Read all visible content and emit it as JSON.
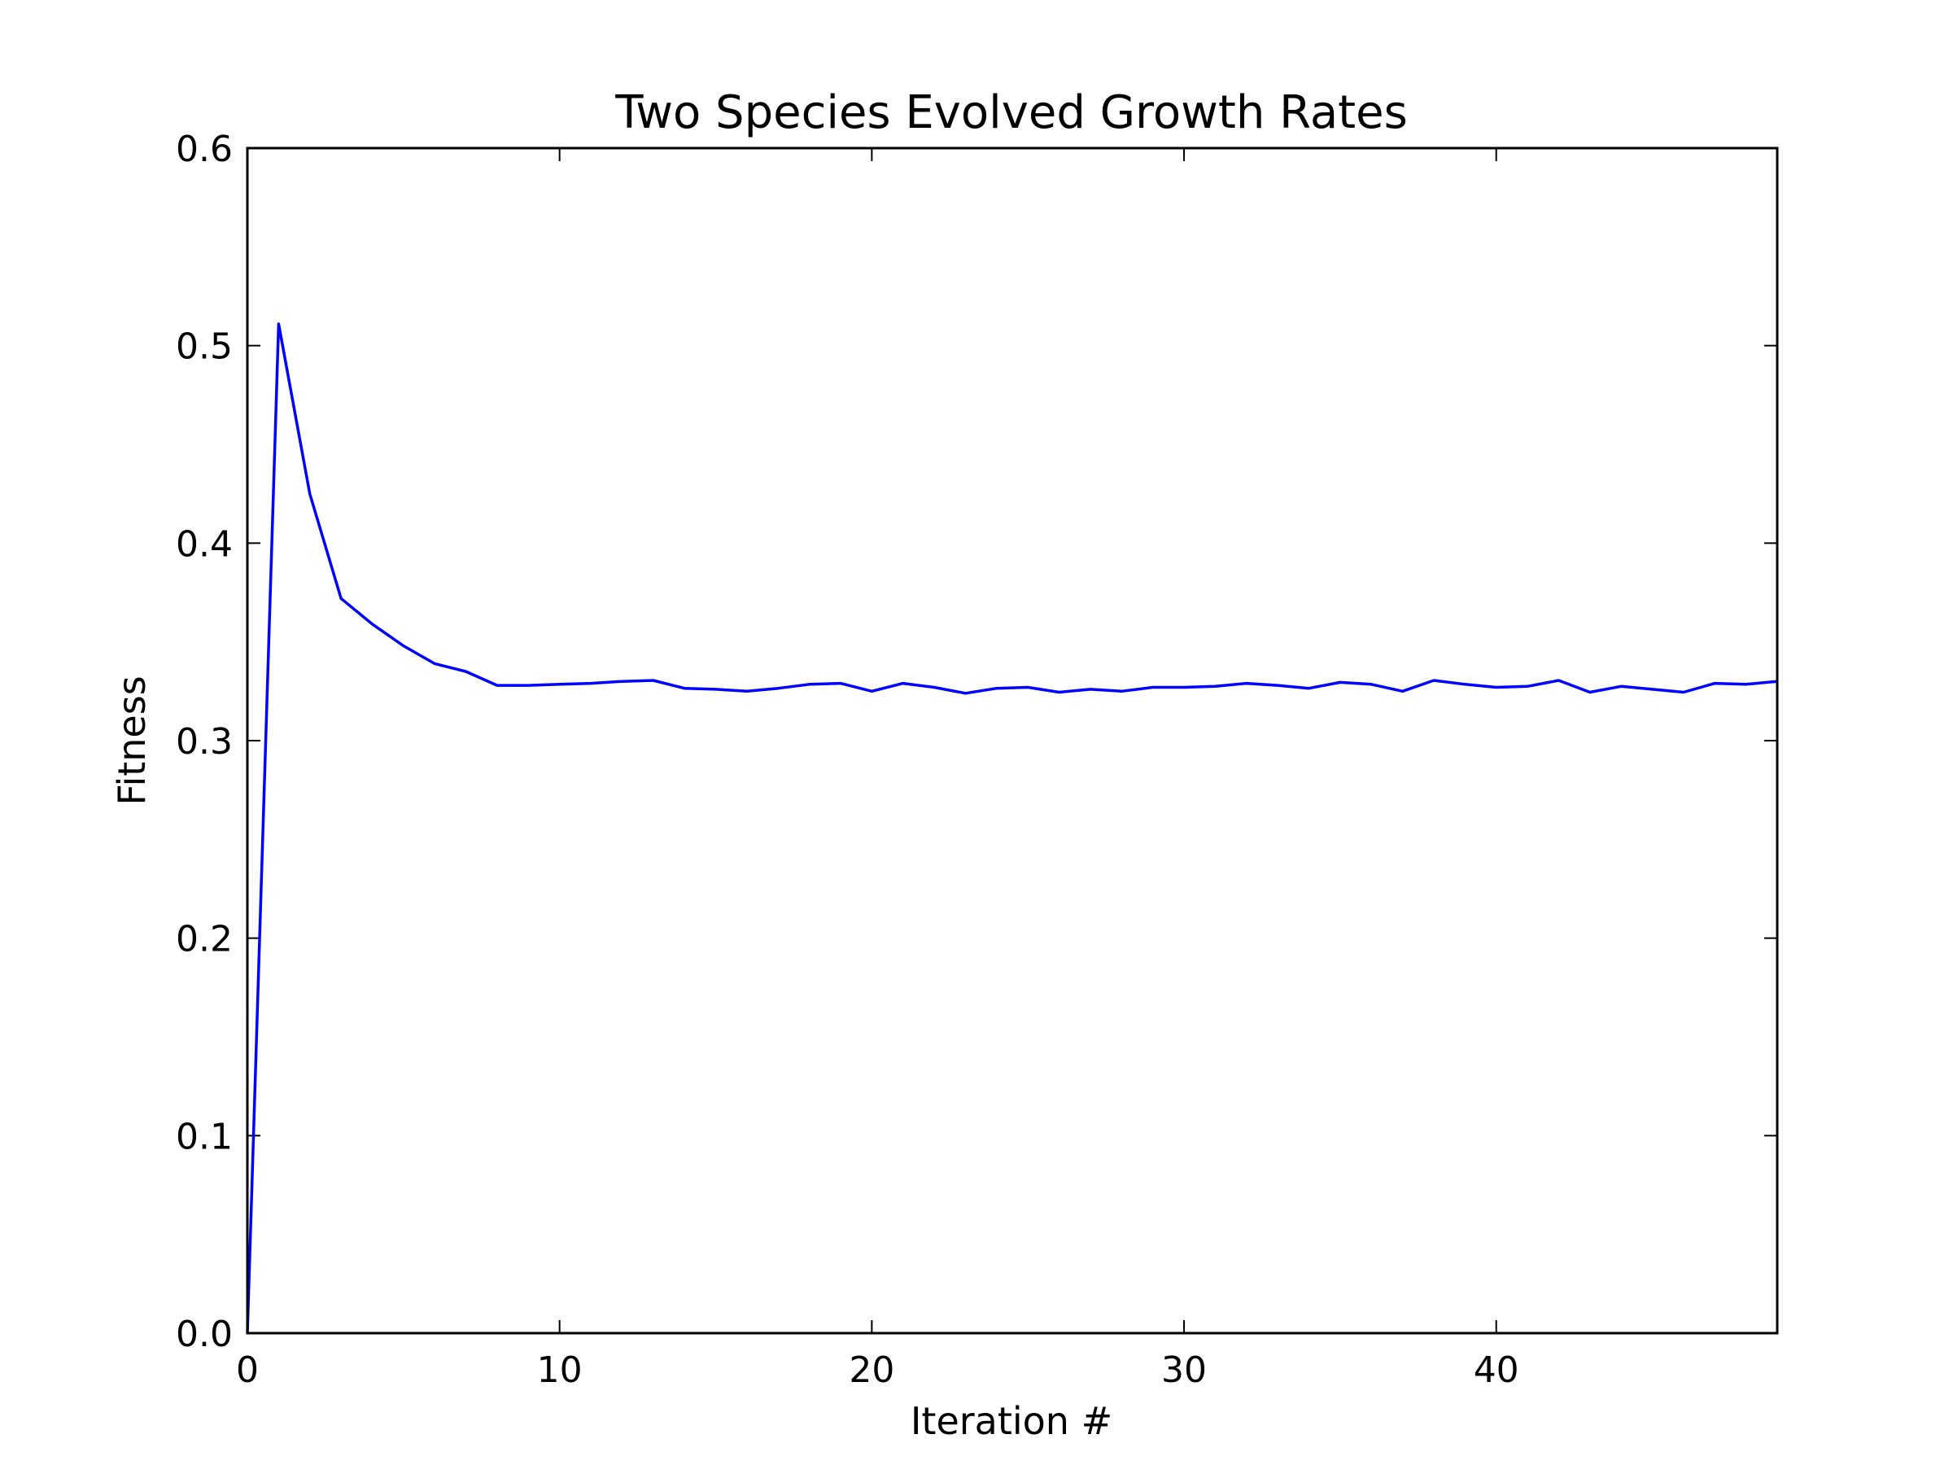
{
  "chart_data": {
    "type": "line",
    "title": "Two Species Evolved Growth Rates",
    "xlabel": "Iteration #",
    "ylabel": "Fitness",
    "xlim": [
      0,
      49
    ],
    "ylim": [
      0,
      0.6
    ],
    "xticks": [
      0,
      10,
      20,
      30,
      40
    ],
    "xtick_labels": [
      "0",
      "10",
      "20",
      "30",
      "40"
    ],
    "yticks": [
      0.0,
      0.1,
      0.2,
      0.3,
      0.4,
      0.5,
      0.6
    ],
    "ytick_labels": [
      "0.0",
      "0.1",
      "0.2",
      "0.3",
      "0.4",
      "0.5",
      "0.6"
    ],
    "grid": false,
    "legend": "none",
    "series": [
      {
        "color": "#0000ff",
        "x": [
          0,
          1,
          2,
          3,
          4,
          5,
          6,
          7,
          8,
          9,
          10,
          11,
          12,
          13,
          14,
          15,
          16,
          17,
          18,
          19,
          20,
          21,
          22,
          23,
          24,
          25,
          26,
          27,
          28,
          29,
          30,
          31,
          32,
          33,
          34,
          35,
          36,
          37,
          38,
          39,
          40,
          41,
          42,
          43,
          44,
          45,
          46,
          47,
          48,
          49
        ],
        "y": [
          0.0,
          0.511,
          0.425,
          0.372,
          0.359,
          0.348,
          0.339,
          0.335,
          0.328,
          0.328,
          0.3285,
          0.329,
          0.33,
          0.3305,
          0.3265,
          0.326,
          0.325,
          0.3265,
          0.3285,
          0.329,
          0.325,
          0.329,
          0.327,
          0.324,
          0.3265,
          0.327,
          0.3245,
          0.326,
          0.325,
          0.327,
          0.327,
          0.3275,
          0.329,
          0.328,
          0.3265,
          0.3295,
          0.3285,
          0.325,
          0.3305,
          0.3285,
          0.327,
          0.3275,
          0.3305,
          0.3245,
          0.3275,
          0.326,
          0.3245,
          0.329,
          0.3285,
          0.33
        ]
      }
    ]
  }
}
